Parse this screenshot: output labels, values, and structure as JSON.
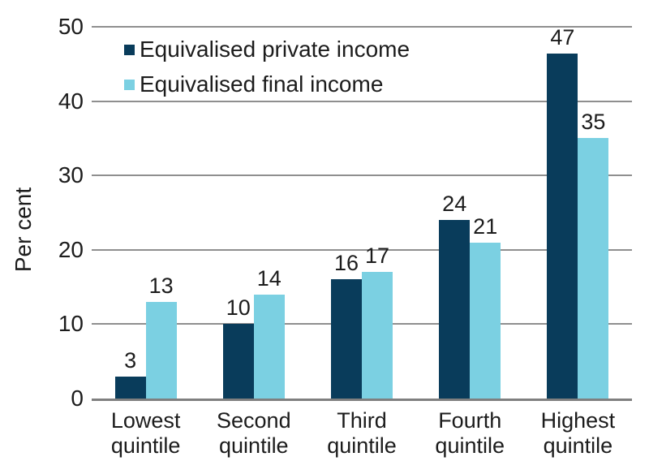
{
  "chart_data": {
    "type": "bar",
    "title": "",
    "xlabel": "",
    "ylabel": "Per cent",
    "ylim": [
      0,
      50
    ],
    "yticks": [
      0,
      10,
      20,
      30,
      40,
      50
    ],
    "grid": true,
    "legend_position": "top-left",
    "categories": [
      "Lowest\nquintile",
      "Second\nquintile",
      "Third\nquintile",
      "Fourth\nquintile",
      "Highest\nquintile"
    ],
    "series": [
      {
        "name": "Equivalised private income",
        "color": "#093c5b",
        "values": [
          3,
          10,
          16,
          24,
          47
        ]
      },
      {
        "name": "Equivalised final income",
        "color": "#7bd0e2",
        "values": [
          13,
          14,
          17,
          21,
          35
        ]
      }
    ],
    "value_labels_shown": true
  },
  "style": {
    "grid_color": "#8f8f8f",
    "axis_color": "#7f7f7f",
    "text_color": "#1c1c1c",
    "background": "#ffffff"
  }
}
